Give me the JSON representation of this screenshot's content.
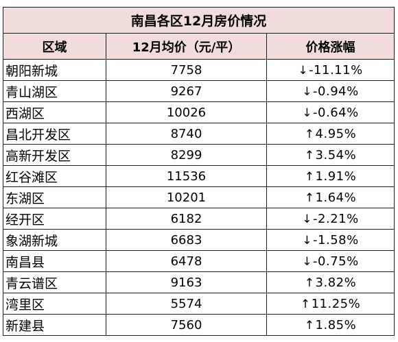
{
  "table": {
    "title": "南昌各区12月房价情况",
    "headers": {
      "district": "区域",
      "price": "12月均价（元/平）",
      "change": "价格涨幅"
    },
    "rows": [
      {
        "district": "朝阳新城",
        "price": "7758",
        "arrow": "↓",
        "change": "-11.11%"
      },
      {
        "district": "青山湖区",
        "price": "9267",
        "arrow": "↓",
        "change": "-0.94%"
      },
      {
        "district": "西湖区",
        "price": "10026",
        "arrow": "↓",
        "change": "-0.64%"
      },
      {
        "district": "昌北开发区",
        "price": "8740",
        "arrow": "↑",
        "change": "4.95%"
      },
      {
        "district": "高新开发区",
        "price": "8299",
        "arrow": "↑",
        "change": "3.54%"
      },
      {
        "district": "红谷滩区",
        "price": "11536",
        "arrow": "↑",
        "change": "1.91%"
      },
      {
        "district": "东湖区",
        "price": "10201",
        "arrow": "↑",
        "change": "1.64%"
      },
      {
        "district": "经开区",
        "price": "6182",
        "arrow": "↓",
        "change": "-2.21%"
      },
      {
        "district": "象湖新城",
        "price": "6683",
        "arrow": "↓",
        "change": "-1.58%"
      },
      {
        "district": "南昌县",
        "price": "6478",
        "arrow": "↓",
        "change": "-0.75%"
      },
      {
        "district": "青云谱区",
        "price": "9163",
        "arrow": "↑",
        "change": "3.82%"
      },
      {
        "district": "湾里区",
        "price": "5574",
        "arrow": "↑",
        "change": "11.25%"
      },
      {
        "district": "新建县",
        "price": "7560",
        "arrow": "↑",
        "change": "1.85%"
      }
    ]
  },
  "colors": {
    "header_background": "#f2dcdb",
    "border": "#1a1a1a"
  }
}
